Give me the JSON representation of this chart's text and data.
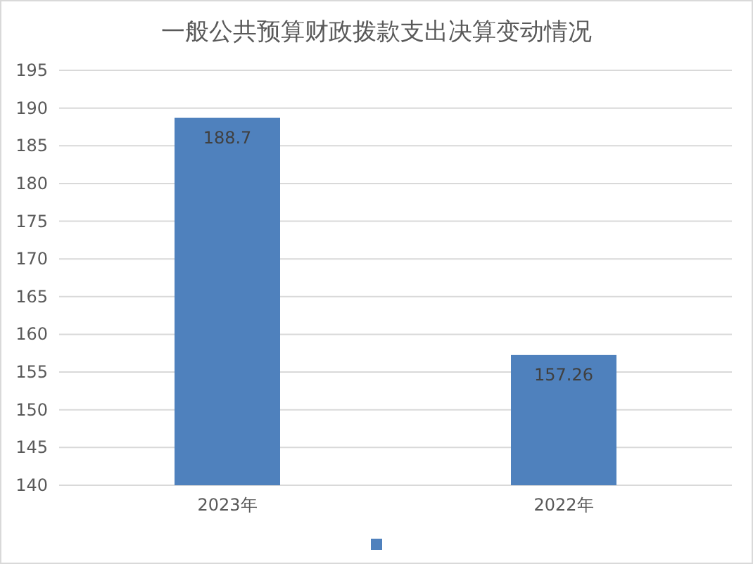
{
  "chart_data": {
    "type": "bar",
    "title": "一般公共预算财政拨款支出决算变动情况",
    "categories": [
      "2023年",
      "2022年"
    ],
    "series": [
      {
        "color": "#4f81bd",
        "values": [
          188.7,
          157.26
        ]
      }
    ],
    "ylim": [
      140,
      195
    ],
    "yticks": [
      140,
      145,
      150,
      155,
      160,
      165,
      170,
      175,
      180,
      185,
      190,
      195
    ],
    "grid": "y",
    "data_labels": true
  }
}
